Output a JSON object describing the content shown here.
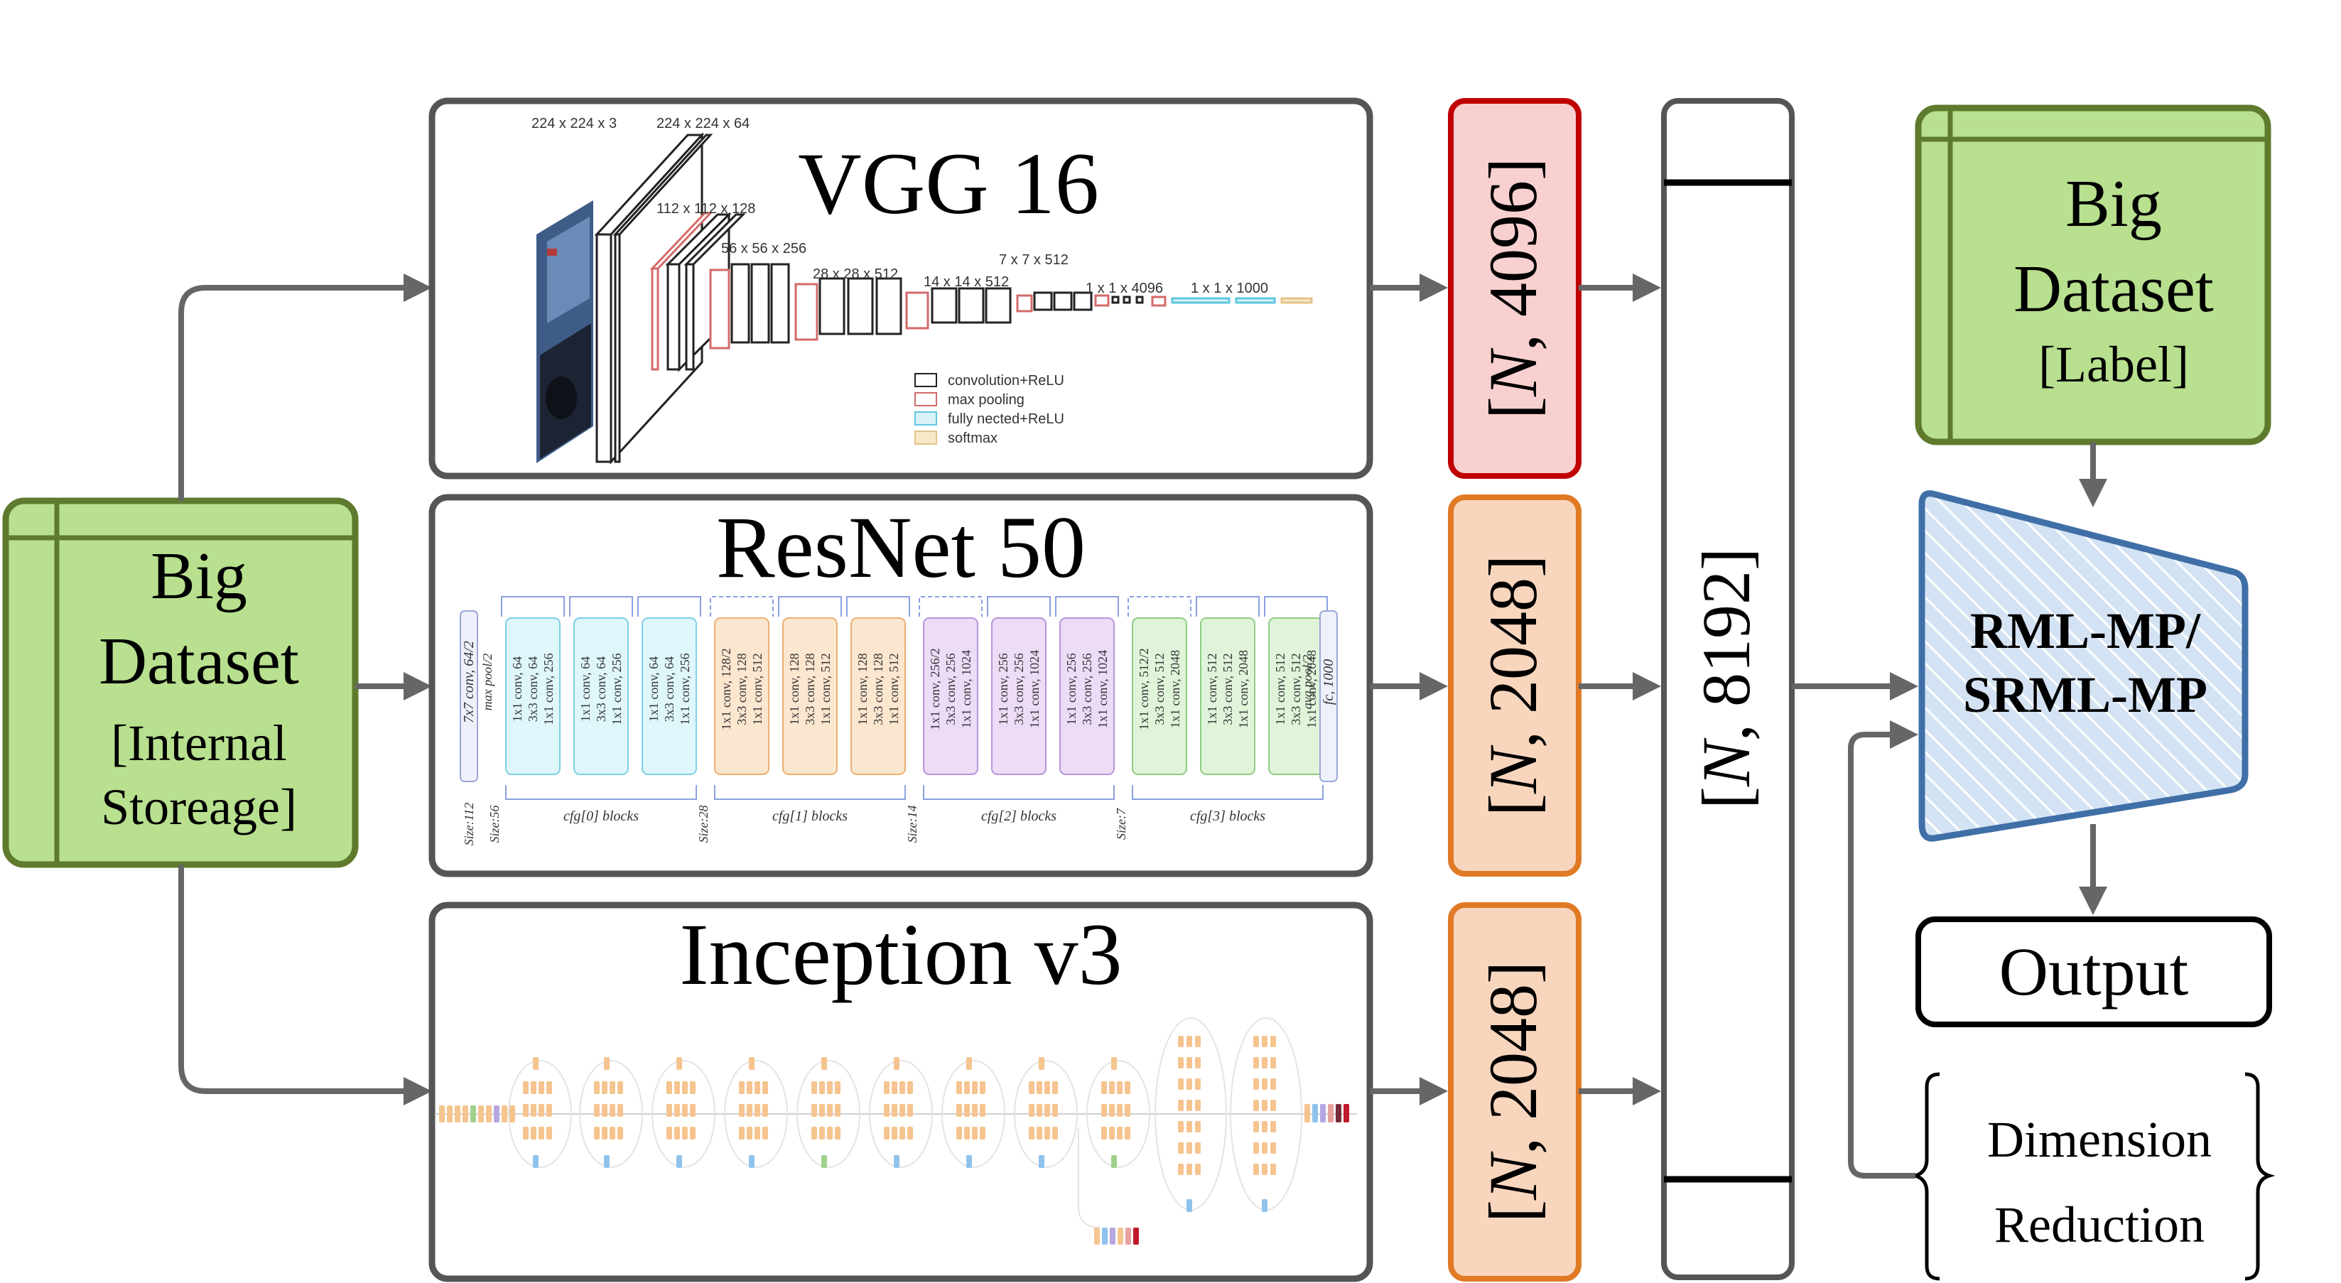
{
  "colors": {
    "arrow": "#666666",
    "panel_border": "#555555",
    "dataset_fill": "#b8e08f",
    "dataset_border": "#5e7a2d",
    "vgg_feat_fill": "#f9d0d0",
    "vgg_feat_border": "#c00000",
    "feat_fill": "#f8d5bd",
    "feat_border": "#e07a24",
    "model_fill": "#d4e3f3",
    "model_border": "#3f6fa6"
  },
  "input_dataset": {
    "line1": "Big",
    "line2": "Dataset",
    "line3": "[Internal",
    "line4": "Storeage]"
  },
  "label_dataset": {
    "line1": "Big",
    "line2": "Dataset",
    "line3": "[Label]"
  },
  "vgg": {
    "title": "VGG 16",
    "dims": [
      "224 x 224 x 3",
      "224 x 224 x 64",
      "112 x 112 x 128",
      "56 x 56 x 256",
      "28 x 28 x 512",
      "14 x 14 x 512",
      "7 x 7 x 512",
      "1 x 1 x 4096",
      "1 x 1 x 1000"
    ],
    "legend": [
      "convolution+ReLU",
      "max pooling",
      "fully nected+ReLU",
      "softmax"
    ],
    "legend_icons": [
      "conv-block-icon",
      "pool-block-icon",
      "fc-block-icon",
      "softmax-block-icon"
    ]
  },
  "resnet": {
    "title": "ResNet 50",
    "first": "7x7 conv, 64/2",
    "pool": "max pool/2",
    "last_pool": "avg pool/2",
    "last_fc": "fc, 1000",
    "stages": [
      {
        "label": "cfg[0] blocks",
        "size": "Size:56",
        "blocks": [
          [
            "1x1 conv, 64",
            "3x3 conv, 64",
            "1x1 conv, 256"
          ],
          [
            "1x1 conv, 64",
            "3x3 conv, 64",
            "1x1 conv, 256"
          ],
          [
            "1x1 conv, 64",
            "3x3 conv, 64",
            "1x1 conv, 256"
          ]
        ]
      },
      {
        "label": "cfg[1] blocks",
        "size": "Size:28",
        "blocks": [
          [
            "1x1 conv, 128/2",
            "3x3 conv, 128",
            "1x1 conv, 512"
          ],
          [
            "1x1 conv, 128",
            "3x3 conv, 128",
            "1x1 conv, 512"
          ],
          [
            "1x1 conv, 128",
            "3x3 conv, 128",
            "1x1 conv, 512"
          ]
        ]
      },
      {
        "label": "cfg[2] blocks",
        "size": "Size:14",
        "blocks": [
          [
            "1x1 conv, 256/2",
            "3x3 conv, 256",
            "1x1 conv, 1024"
          ],
          [
            "1x1 conv, 256",
            "3x3 conv, 256",
            "1x1 conv, 1024"
          ],
          [
            "1x1 conv, 256",
            "3x3 conv, 256",
            "1x1 conv, 1024"
          ]
        ]
      },
      {
        "label": "cfg[3] blocks",
        "size": "Size:7",
        "blocks": [
          [
            "1x1 conv, 512/2",
            "3x3 conv, 512",
            "1x1 conv, 2048"
          ],
          [
            "1x1 conv, 512",
            "3x3 conv, 512",
            "1x1 conv, 2048"
          ],
          [
            "1x1 conv, 512",
            "3x3 conv, 512",
            "1x1 conv, 2048"
          ]
        ]
      }
    ],
    "size_first": "Size:112"
  },
  "inception": {
    "title": "Inception v3"
  },
  "features": {
    "vgg": {
      "n": "N",
      "pre": "[",
      "post": ", 4096]"
    },
    "resnet": {
      "n": "N",
      "pre": "[",
      "post": ", 2048]"
    },
    "inception": {
      "n": "N",
      "pre": "[",
      "post": ", 2048]"
    },
    "concat": {
      "n": "N",
      "pre": "[",
      "post": ", 8192]"
    }
  },
  "model": {
    "line1": "RML-MP/",
    "line2": "SRML-MP"
  },
  "output": {
    "label": "Output"
  },
  "dim_reduction": {
    "line1": "Dimension",
    "line2": "Reduction"
  }
}
